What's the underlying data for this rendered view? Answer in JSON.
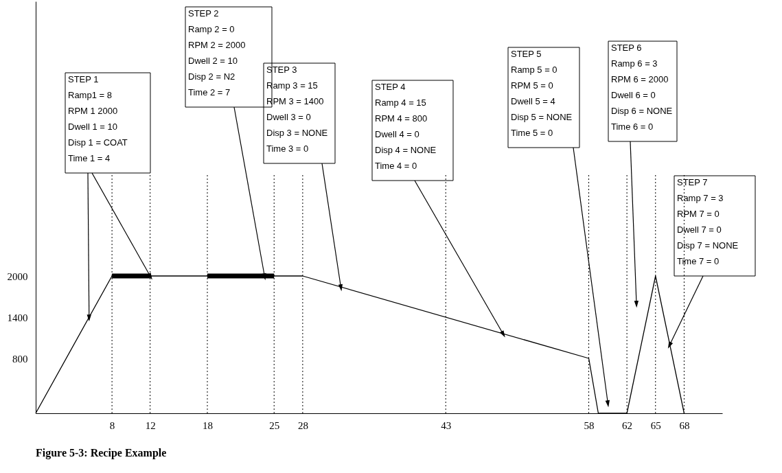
{
  "chart_data": {
    "type": "line",
    "x": [
      0,
      8,
      18,
      28,
      58,
      59,
      62,
      65,
      68
    ],
    "series": [
      {
        "color": "#000000",
        "values": [
          0,
          2000,
          2000,
          2000,
          800,
          0,
          0,
          2000,
          0
        ]
      },
      {
        "color": "#000000",
        "x": [
          8,
          12
        ],
        "values": [
          2000,
          2000
        ]
      },
      {
        "color": "#000000",
        "x": [
          18,
          25
        ],
        "values": [
          2000,
          2000
        ]
      }
    ],
    "xlim": [
      0,
      72
    ],
    "ylim": [
      0,
      6000
    ],
    "xticks": [
      8,
      12,
      18,
      25,
      28,
      43,
      58,
      62,
      65,
      68
    ],
    "yticks": [
      800,
      1400,
      2000
    ],
    "grid": false,
    "ref_lines": [
      {
        "axis": "x",
        "value": 8,
        "line_style": "dotted"
      },
      {
        "axis": "x",
        "value": 12,
        "line_style": "dotted"
      },
      {
        "axis": "x",
        "value": 18,
        "line_style": "dotted"
      },
      {
        "axis": "x",
        "value": 25,
        "line_style": "dotted"
      },
      {
        "axis": "x",
        "value": 28,
        "line_style": "dotted"
      },
      {
        "axis": "x",
        "value": 43,
        "line_style": "dotted"
      },
      {
        "axis": "x",
        "value": 58,
        "line_style": "dotted"
      },
      {
        "axis": "x",
        "value": 62,
        "line_style": "dotted"
      },
      {
        "axis": "x",
        "value": 65,
        "line_style": "dotted"
      },
      {
        "axis": "x",
        "value": 68,
        "line_style": "dotted"
      }
    ],
    "annotations": [
      {
        "text": "STEP 1\nRamp1 = 8\nRPM 1 2000\nDwell 1 = 10\nDisp 1 = COAT\nTime 1 = 4",
        "x": 12,
        "y": 2000
      },
      {
        "text": "STEP 2\nRamp 2 = 0\nRPM 2 = 2000\nDwell 2 = 10\nDisp 2 = N2\nTime 2 = 7",
        "x": 24,
        "y": 2000
      },
      {
        "text": "STEP 3\nRamp 3 = 15\nRPM 3 = 1400\nDwell 3 = 0\nDisp 3 = NONE\nTime 3 = 0",
        "x": 32,
        "y": 1840
      },
      {
        "text": "STEP 4\nRamp 4 = 15\nRPM 4 = 800\nDwell 4 = 0\nDisp 4 = NONE\nTime 4 = 0",
        "x": 49,
        "y": 1160
      },
      {
        "text": "STEP 5\nRamp 5 = 0\nRPM 5 = 0\nDwell 5 = 4\nDisp 5 = NONE\nTime 5 = 0",
        "x": 60,
        "y": 150
      },
      {
        "text": "STEP 6\nRamp 6 = 3\nRPM 6 = 2000\nDwell 6 = 0\nDisp 6 = NONE\nTime 6 = 0",
        "x": 63,
        "y": 1600
      },
      {
        "text": "STEP 7\nRamp 7 = 3\nRPM 7 = 0\nDwell 7 = 0\nDisp 7 = NONE\nTime 7 = 0",
        "x": 66.5,
        "y": 1000
      },
      "Figure 5-3: Recipe Example"
    ]
  }
}
